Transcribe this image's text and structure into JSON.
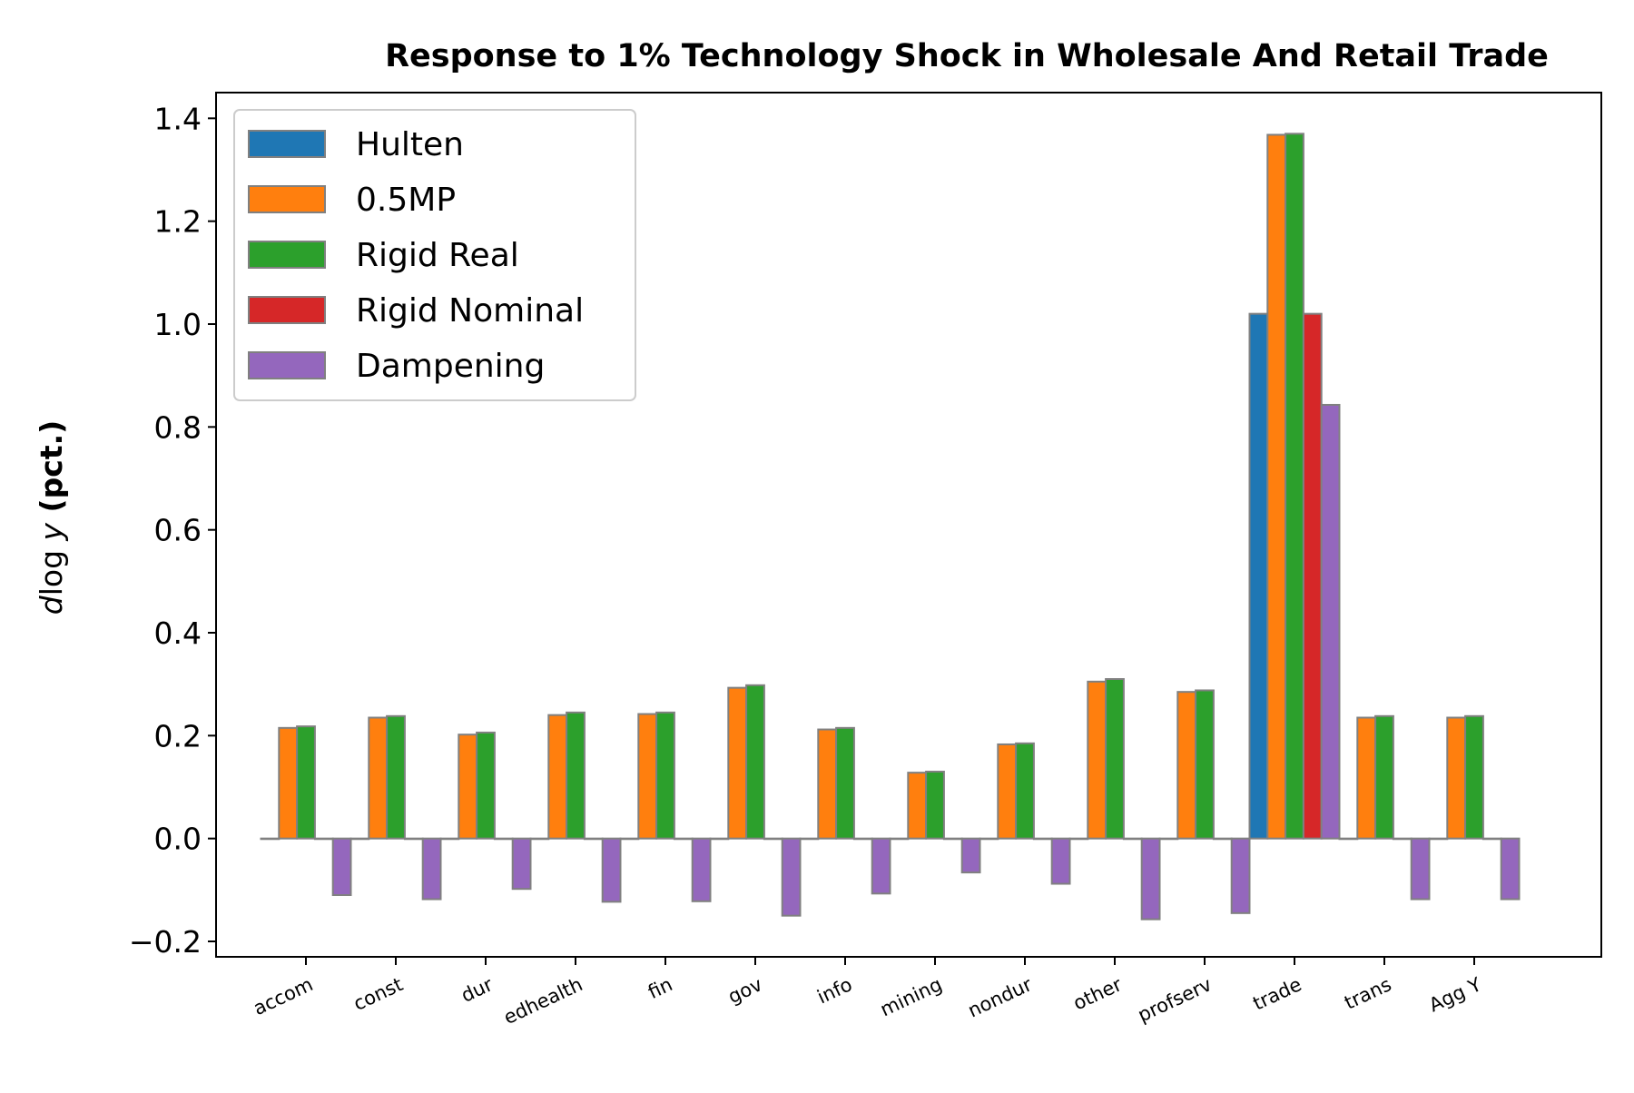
{
  "chart_data": {
    "type": "bar",
    "title": "Response to 1% Technology Shock in Wholesale And Retail Trade",
    "ylabel_italic": "d",
    "ylabel_mid": "log ",
    "ylabel_var": "y",
    "ylabel_bold": " (pct.)",
    "categories": [
      "accom",
      "const",
      "dur",
      "edhealth",
      "fin",
      "gov",
      "info",
      "mining",
      "nondur",
      "other",
      "profserv",
      "trade",
      "trans",
      "Agg Y"
    ],
    "ylim": [
      -0.23,
      1.45
    ],
    "yticks": [
      -0.2,
      0.0,
      0.2,
      0.4,
      0.6,
      0.8,
      1.0,
      1.2,
      1.4
    ],
    "ytick_labels": [
      "−0.2",
      "0.0",
      "0.2",
      "0.4",
      "0.6",
      "0.8",
      "1.0",
      "1.2",
      "1.4"
    ],
    "legend_position": "top-left",
    "bar_edge_color": "#808080",
    "series": [
      {
        "name": "Hulten",
        "color": "#1f77b4",
        "values": [
          0,
          0,
          0,
          0,
          0,
          0,
          0,
          0,
          0,
          0,
          0,
          1.02,
          0,
          0
        ]
      },
      {
        "name": "0.5MP",
        "color": "#ff7f0e",
        "values": [
          0.215,
          0.235,
          0.202,
          0.24,
          0.242,
          0.293,
          0.212,
          0.128,
          0.183,
          0.305,
          0.285,
          1.368,
          0.235,
          0.235
        ]
      },
      {
        "name": "Rigid Real",
        "color": "#2ca02c",
        "values": [
          0.218,
          0.238,
          0.206,
          0.245,
          0.245,
          0.298,
          0.215,
          0.13,
          0.185,
          0.31,
          0.288,
          1.37,
          0.238,
          0.238
        ]
      },
      {
        "name": "Rigid Nominal",
        "color": "#d62728",
        "values": [
          0,
          0,
          0,
          0,
          0,
          0,
          0,
          0,
          0,
          0,
          0,
          1.02,
          0,
          0
        ]
      },
      {
        "name": "Dampening",
        "color": "#9467bd",
        "values": [
          -0.11,
          -0.118,
          -0.098,
          -0.123,
          -0.122,
          -0.15,
          -0.107,
          -0.066,
          -0.088,
          -0.157,
          -0.145,
          0.843,
          -0.118,
          -0.118
        ]
      }
    ]
  }
}
